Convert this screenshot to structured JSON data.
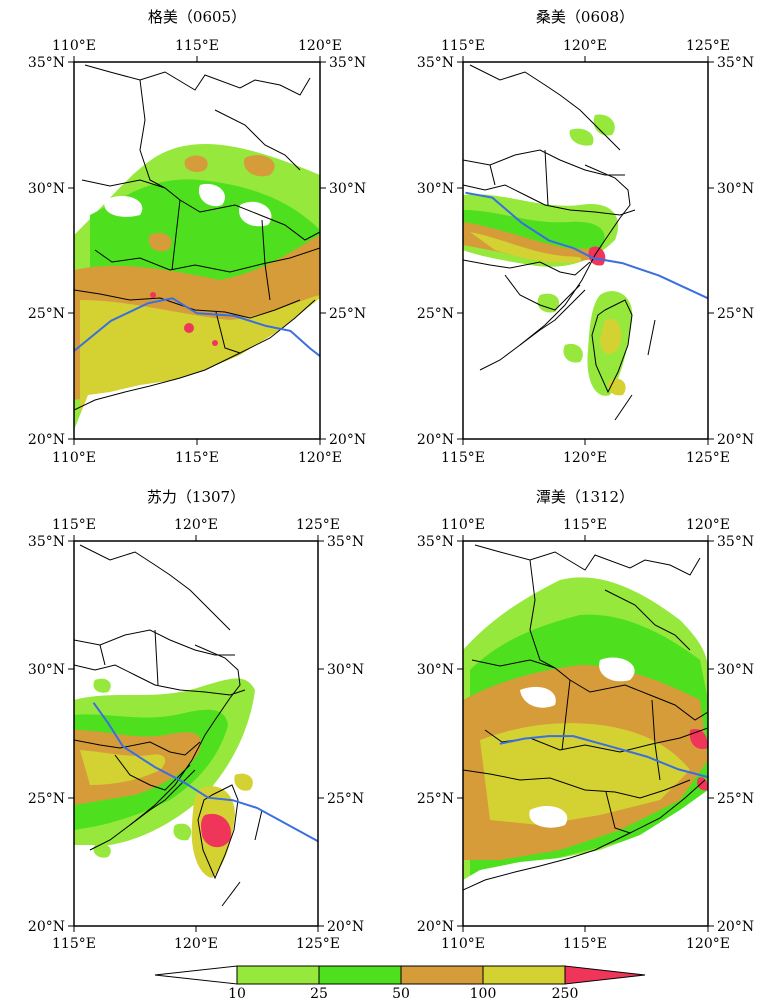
{
  "panels": [
    {
      "title": "格美（0605）",
      "x_ticks": [
        "110°E",
        "115°E",
        "120°E"
      ],
      "y_ticks": [
        "35°N",
        "30°N",
        "25°N",
        "20°N"
      ],
      "track": [
        [
          110,
          23.5
        ],
        [
          111.5,
          24.7
        ],
        [
          113,
          25.4
        ],
        [
          114,
          25.6
        ],
        [
          115,
          25.0
        ],
        [
          116.5,
          24.9
        ],
        [
          117.8,
          24.5
        ],
        [
          118.8,
          24.3
        ],
        [
          119.6,
          23.6
        ],
        [
          120,
          23.3
        ]
      ]
    },
    {
      "title": "桑美（0608）",
      "x_ticks": [
        "115°E",
        "120°E",
        "125°E"
      ],
      "y_ticks": [
        "35°N",
        "30°N",
        "25°N",
        "20°N"
      ],
      "track": [
        [
          115.1,
          29.8
        ],
        [
          116.2,
          29.6
        ],
        [
          117.4,
          28.6
        ],
        [
          118.5,
          27.9
        ],
        [
          119.5,
          27.6
        ],
        [
          120.3,
          27.2
        ],
        [
          121.5,
          27.0
        ],
        [
          123,
          26.5
        ],
        [
          125,
          25.6
        ]
      ]
    },
    {
      "title": "苏力（1307）",
      "x_ticks": [
        "115°E",
        "120°E",
        "125°E"
      ],
      "y_ticks": [
        "35°N",
        "30°N",
        "25°N",
        "20°N"
      ],
      "track": [
        [
          115.8,
          28.7
        ],
        [
          116.4,
          27.9
        ],
        [
          117,
          27.0
        ],
        [
          118.3,
          26.2
        ],
        [
          119.5,
          25.6
        ],
        [
          120.5,
          25.0
        ],
        [
          121.5,
          24.9
        ],
        [
          122.5,
          24.6
        ],
        [
          125,
          23.3
        ]
      ]
    },
    {
      "title": "潭美（1312）",
      "x_ticks": [
        "110°E",
        "115°E",
        "120°E"
      ],
      "y_ticks": [
        "35°N",
        "30°N",
        "25°N",
        "20°N"
      ],
      "track": [
        [
          111.5,
          27.1
        ],
        [
          112.5,
          27.3
        ],
        [
          113.5,
          27.4
        ],
        [
          114.5,
          27.4
        ],
        [
          116,
          27.0
        ],
        [
          117.5,
          26.6
        ],
        [
          118.8,
          26.1
        ],
        [
          120,
          25.8
        ]
      ]
    }
  ],
  "legend": {
    "labels": [
      "10",
      "25",
      "50",
      "100",
      "250"
    ],
    "colors": [
      "#96e83c",
      "#4ee01e",
      "#d69c3a",
      "#d4d232",
      "#f0355a"
    ]
  },
  "precip_colors": {
    "light": "#96e83c",
    "green": "#4ee01e",
    "orange": "#d69c3a",
    "yellow": "#d4d232",
    "red": "#f0355a",
    "track": "#3a6fe0"
  }
}
